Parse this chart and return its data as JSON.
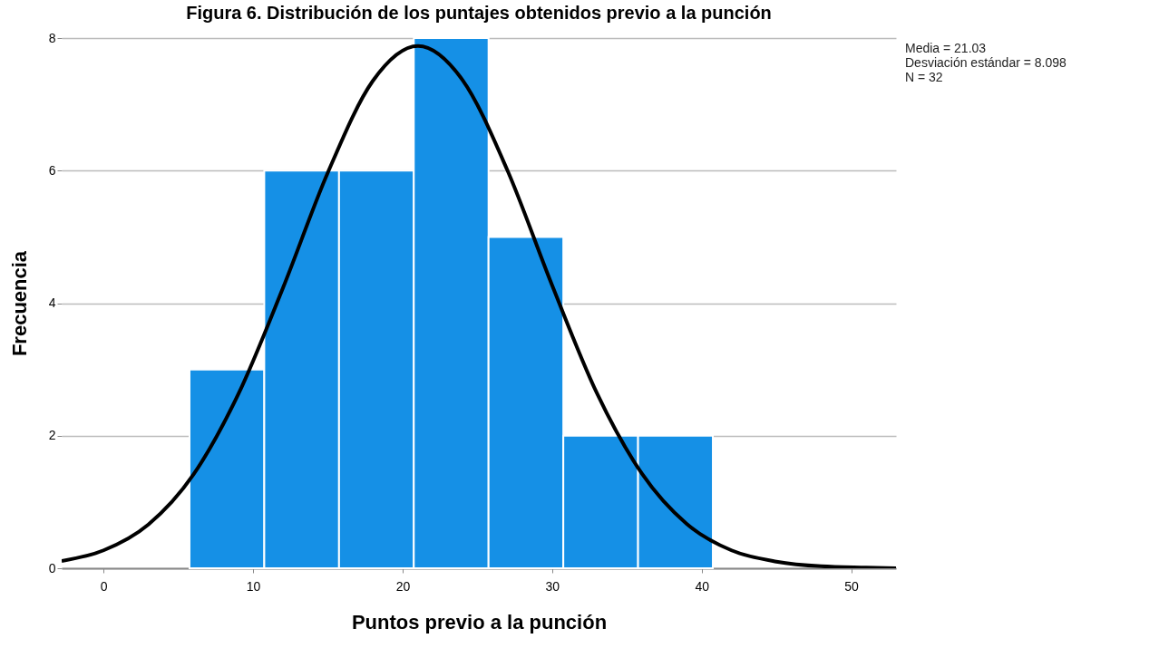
{
  "chart_data": {
    "type": "histogram",
    "title": "Figura 6. Distribución de los puntajes obtenidos previo a la punción",
    "xlabel": "Puntos previo a la punción",
    "ylabel": "Frecuencia",
    "bins": [
      5.75,
      10.75,
      15.75,
      20.75,
      25.75,
      30.75,
      35.75,
      40.75
    ],
    "values": [
      3,
      6,
      6,
      8,
      5,
      2,
      2
    ],
    "color": "#1590e6",
    "series": [
      {
        "type": "line",
        "color": "#000000",
        "x": [
          -2.8,
          0,
          3,
          6,
          9,
          12,
          15,
          18,
          21.03,
          24,
          27,
          30,
          33,
          36,
          39,
          42,
          45,
          48,
          51,
          53
        ],
        "values": [
          0.11,
          0.27,
          0.66,
          1.41,
          2.62,
          4.23,
          5.97,
          7.35,
          7.88,
          7.37,
          6.01,
          4.27,
          2.64,
          1.43,
          0.67,
          0.27,
          0.1,
          0.03,
          0.01,
          0
        ]
      }
    ],
    "xlim": [
      -2.8,
      53
    ],
    "xticks": [
      0,
      10,
      20,
      30,
      40,
      50
    ],
    "ylim": [
      0,
      8
    ],
    "yticks": [
      0,
      2,
      4,
      6,
      8
    ],
    "grid": "y",
    "annotations": [
      "Media = 21.03",
      "Desviación estándar = 8.098",
      "N = 32"
    ]
  }
}
